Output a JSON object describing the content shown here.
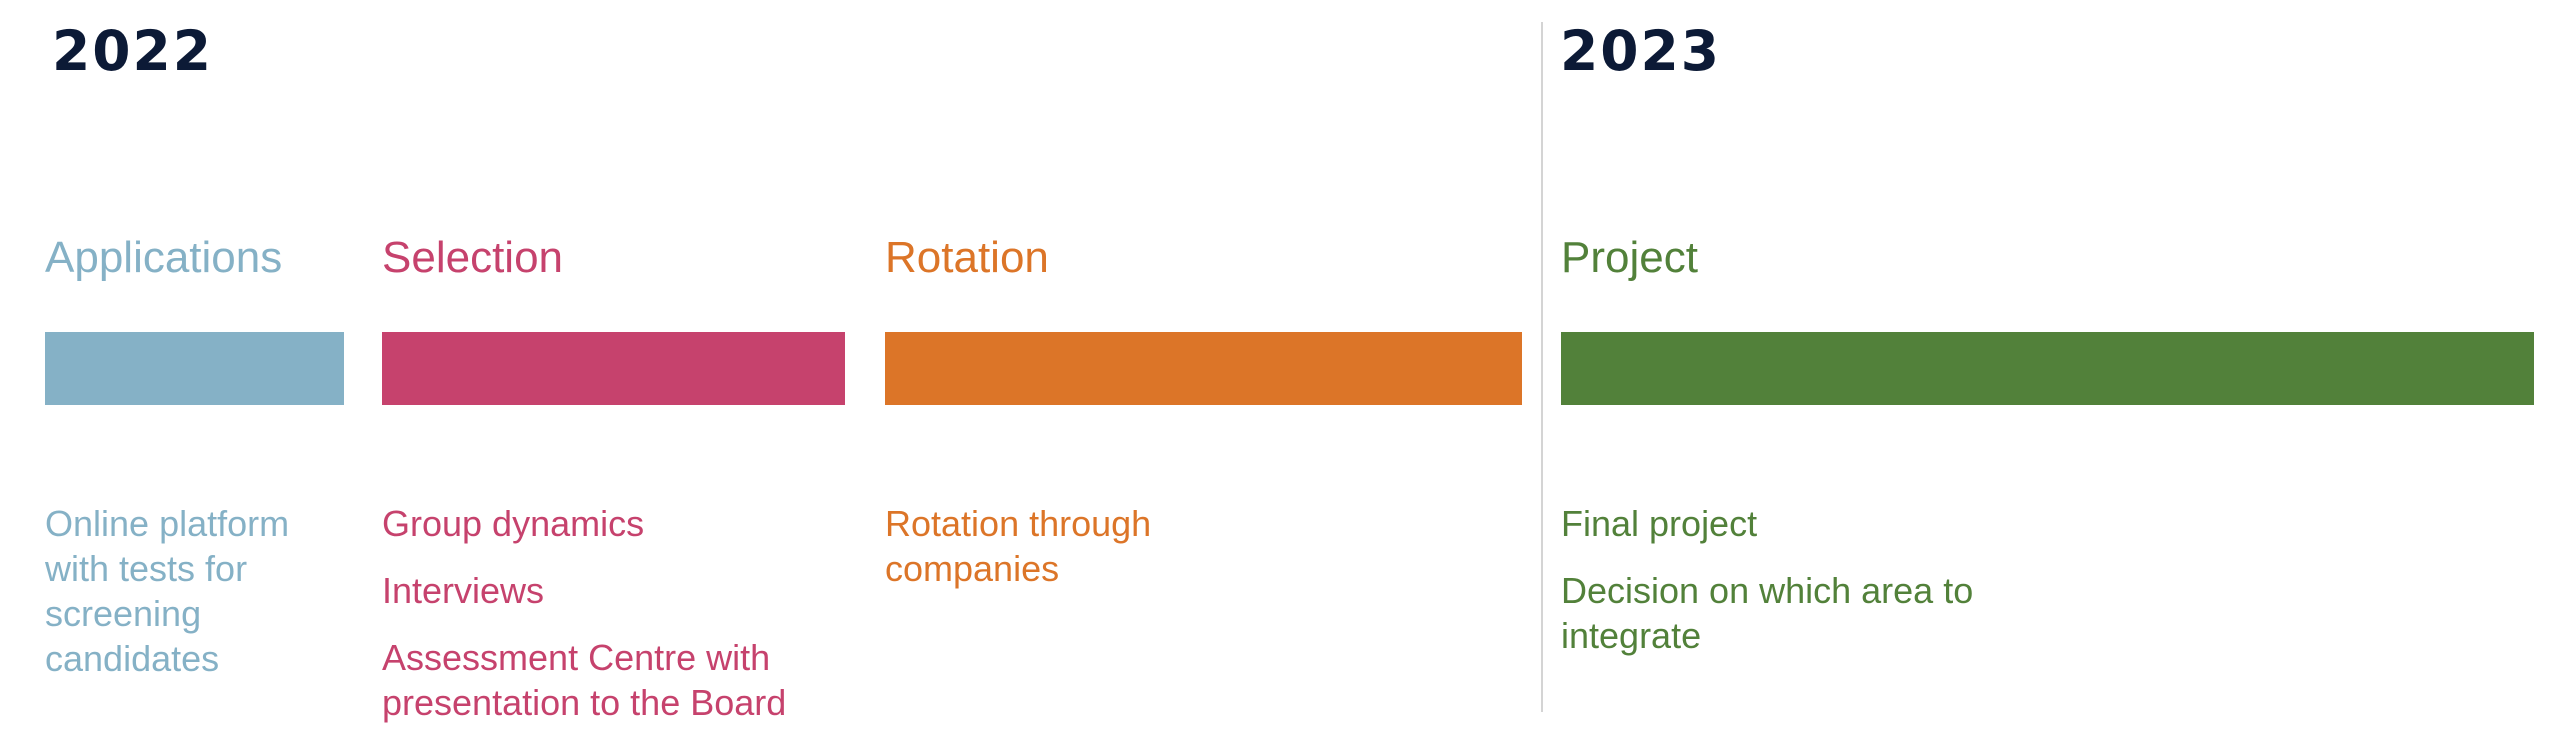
{
  "years": {
    "left": "2022",
    "right": "2023"
  },
  "colors": {
    "applications": "#85b1c6",
    "selection": "#c6426d",
    "rotation": "#dc7528",
    "project": "#52813a",
    "year_text": "#0c1a36",
    "divider": "#d4d4d4"
  },
  "phases": {
    "applications": {
      "title": "Applications",
      "items": [
        [
          "Online platform",
          "with tests for",
          "screening",
          "candidates"
        ]
      ]
    },
    "selection": {
      "title": "Selection",
      "items": [
        [
          "Group dynamics"
        ],
        [
          "Interviews"
        ],
        [
          "Assessment Centre with",
          "presentation to the Board"
        ]
      ]
    },
    "rotation": {
      "title": "Rotation",
      "items": [
        [
          "Rotation through",
          "companies"
        ]
      ]
    },
    "project": {
      "title": "Project",
      "items": [
        [
          "Final project"
        ],
        [
          "Decision on which area to",
          "integrate"
        ]
      ]
    }
  }
}
